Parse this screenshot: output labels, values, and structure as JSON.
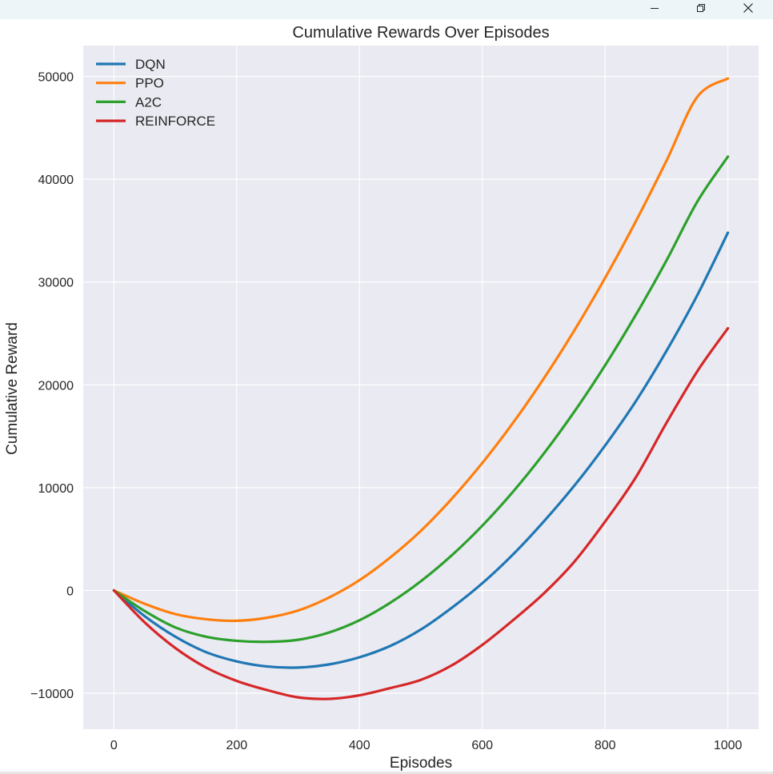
{
  "window": {
    "controls": {
      "minimize": "minimize-icon",
      "restore": "restore-icon",
      "close": "close-icon"
    }
  },
  "colors": {
    "plot_background": "#eaeaf2",
    "grid": "#ffffff",
    "text": "#262626"
  },
  "chart_data": {
    "type": "line",
    "title": "Cumulative Rewards Over Episodes",
    "xlabel": "Episodes",
    "ylabel": "Cumulative Reward",
    "xlim": [
      -50,
      1050
    ],
    "ylim": [
      -13500,
      53000
    ],
    "x_ticks": [
      0,
      200,
      400,
      600,
      800,
      1000
    ],
    "x_tick_labels": [
      "0",
      "200",
      "400",
      "600",
      "800",
      "1000"
    ],
    "y_ticks": [
      -10000,
      0,
      10000,
      20000,
      30000,
      40000,
      50000
    ],
    "y_tick_labels": [
      "−10000",
      "0",
      "10000",
      "20000",
      "30000",
      "40000",
      "50000"
    ],
    "grid": true,
    "legend": "top-left",
    "x": [
      0,
      50,
      100,
      150,
      200,
      250,
      300,
      350,
      400,
      450,
      500,
      550,
      600,
      650,
      700,
      750,
      800,
      850,
      900,
      950,
      1000
    ],
    "series": [
      {
        "name": "DQN",
        "color": "#1f77b4",
        "values": [
          0,
          -2500,
          -4500,
          -6000,
          -6900,
          -7400,
          -7500,
          -7200,
          -6500,
          -5400,
          -3800,
          -1700,
          700,
          3500,
          6700,
          10200,
          14100,
          18400,
          23300,
          28700,
          34800
        ]
      },
      {
        "name": "PPO",
        "color": "#ff7f0e",
        "values": [
          0,
          -1300,
          -2300,
          -2800,
          -2950,
          -2650,
          -1950,
          -700,
          1000,
          3200,
          5800,
          8900,
          12400,
          16300,
          20600,
          25300,
          30400,
          35900,
          41800,
          48000,
          49800
        ]
      },
      {
        "name": "A2C",
        "color": "#2ca02c",
        "values": [
          0,
          -2000,
          -3600,
          -4500,
          -4900,
          -5000,
          -4800,
          -4100,
          -2900,
          -1200,
          900,
          3400,
          6300,
          9600,
          13300,
          17400,
          21900,
          26800,
          32100,
          37800,
          42200
        ]
      },
      {
        "name": "REINFORCE",
        "color": "#d62728",
        "values": [
          0,
          -3100,
          -5600,
          -7500,
          -8800,
          -9700,
          -10400,
          -10550,
          -10200,
          -9500,
          -8700,
          -7300,
          -5300,
          -2900,
          -300,
          2800,
          6700,
          11000,
          16300,
          21300,
          25500
        ]
      }
    ]
  }
}
